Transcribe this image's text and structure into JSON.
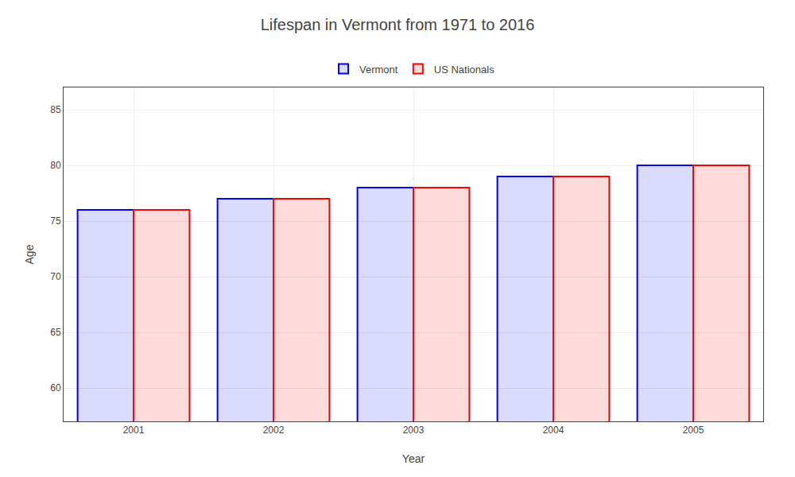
{
  "chart_data": {
    "type": "bar",
    "title": "Lifespan in Vermont from 1971 to 2016",
    "xlabel": "Year",
    "ylabel": "Age",
    "categories": [
      "2001",
      "2002",
      "2003",
      "2004",
      "2005"
    ],
    "series": [
      {
        "name": "Vermont",
        "color": "#0000ff",
        "values": [
          76,
          77,
          78,
          79,
          80
        ]
      },
      {
        "name": "US Nationals",
        "color": "#ff0000",
        "values": [
          76,
          77,
          78,
          79,
          80
        ]
      }
    ],
    "ylim": [
      57,
      87
    ],
    "yticks": [
      60,
      65,
      70,
      75,
      80,
      85
    ],
    "grid": true,
    "legend": "top"
  }
}
